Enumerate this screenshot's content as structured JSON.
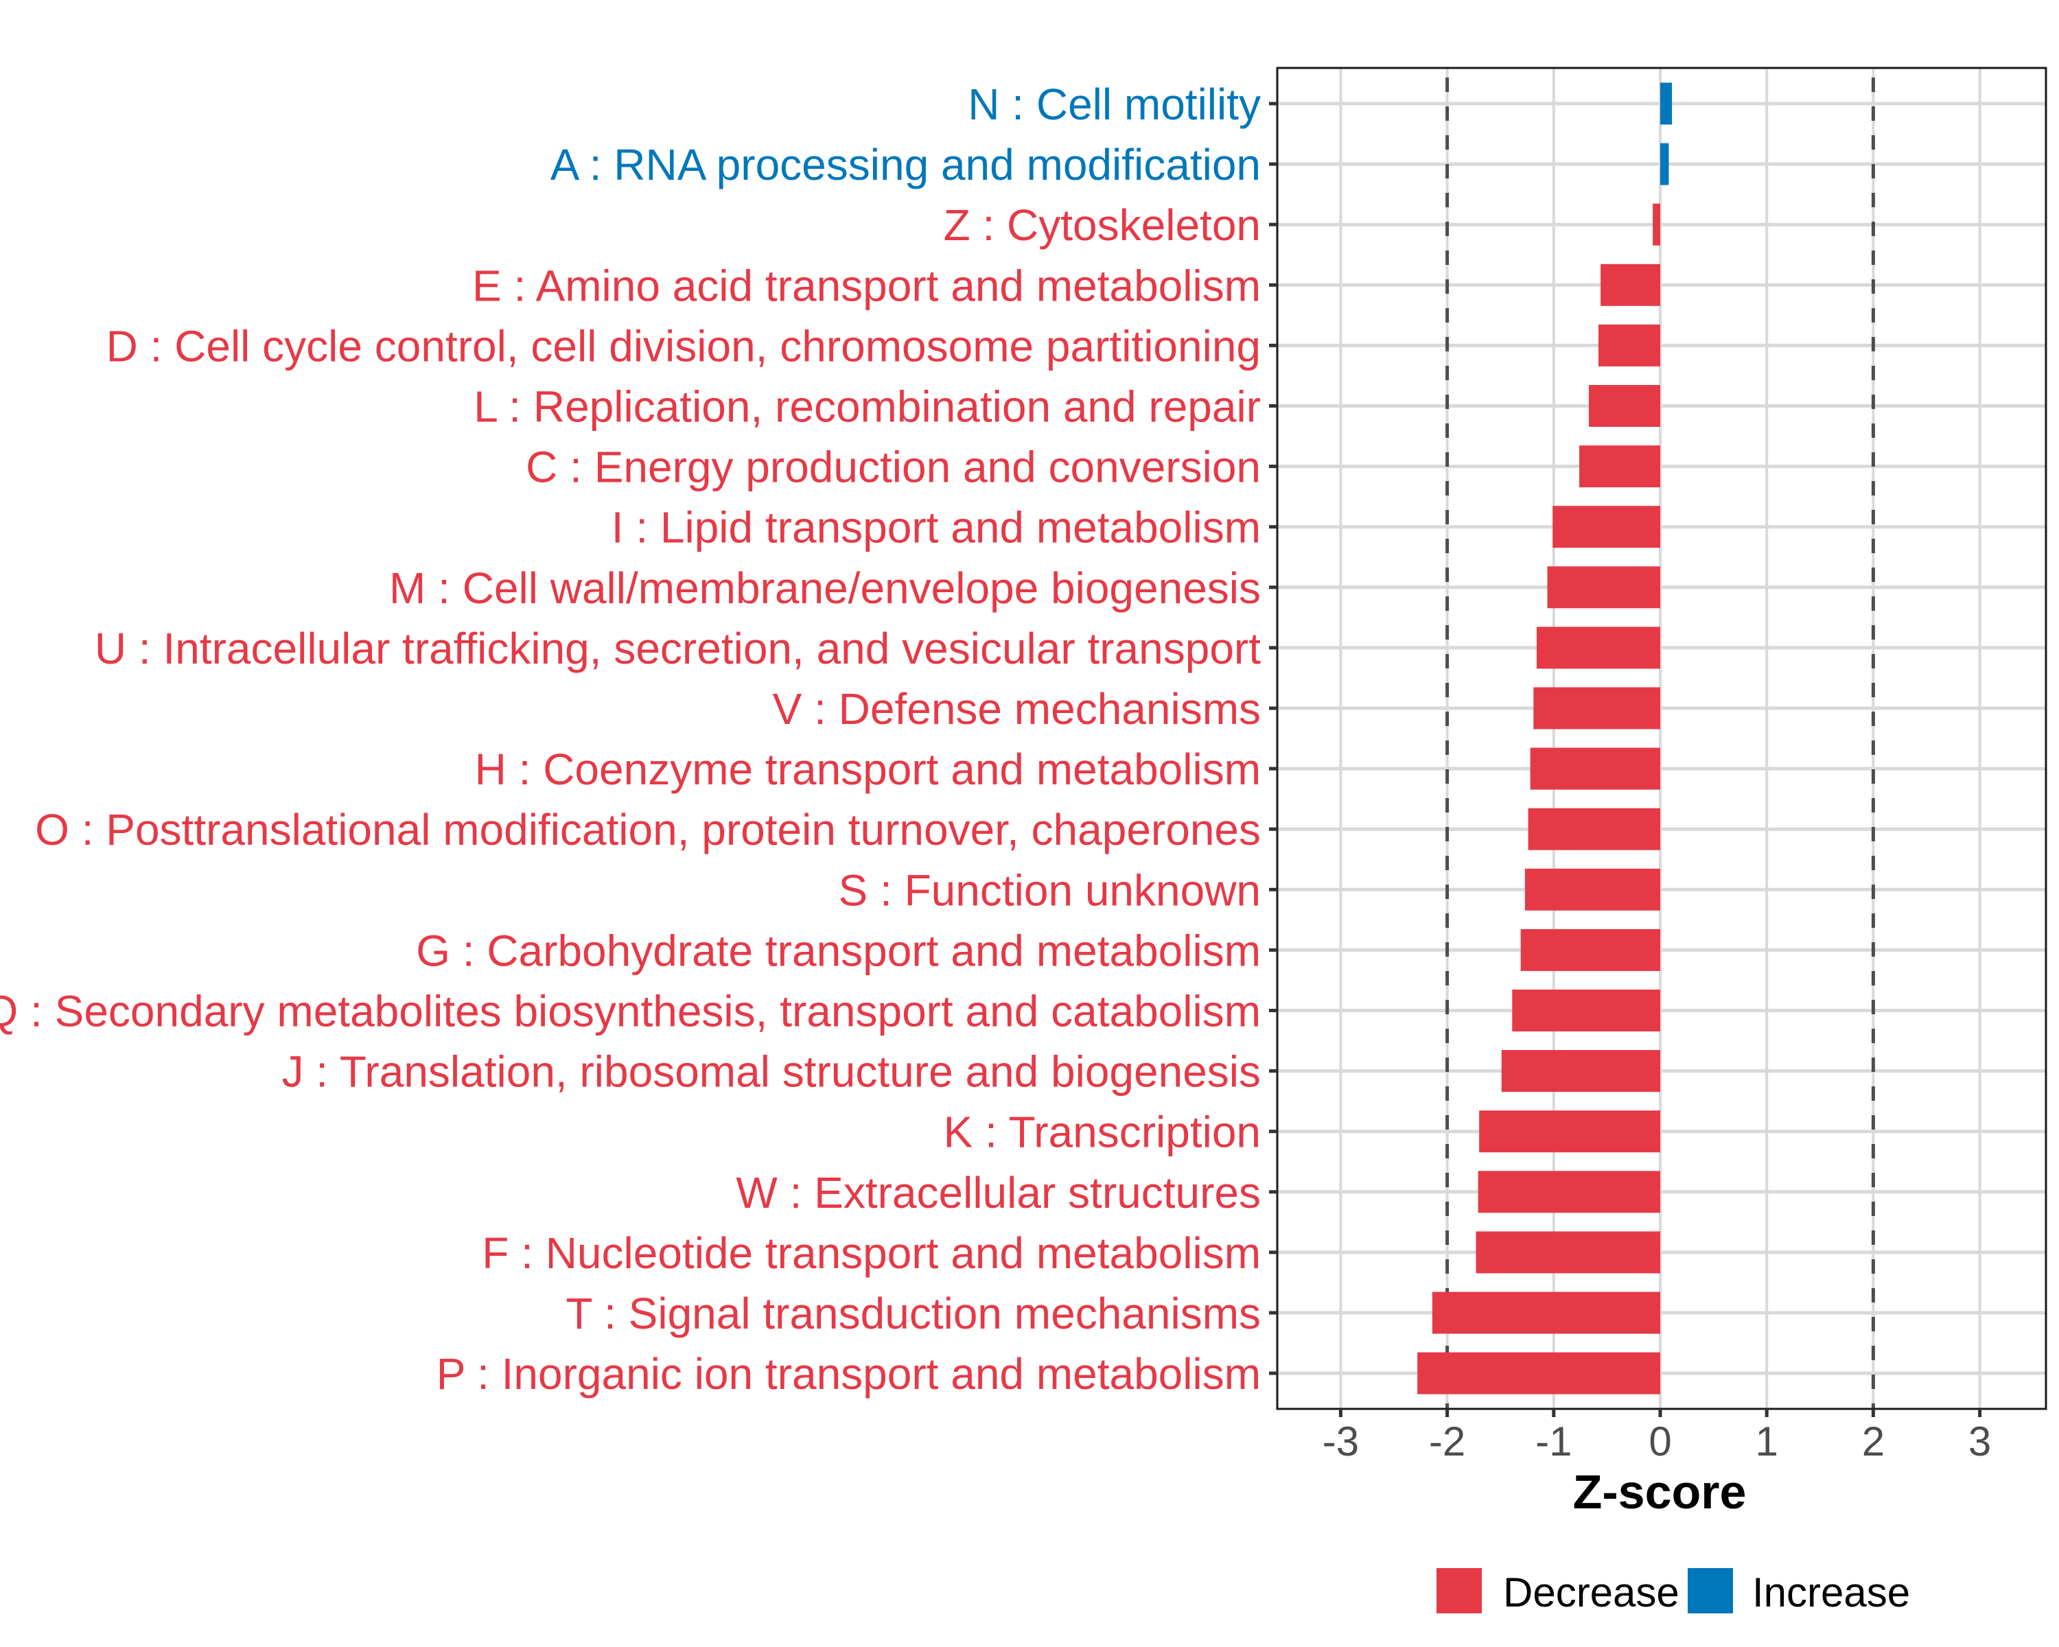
{
  "chart_data": {
    "type": "bar",
    "orientation": "horizontal",
    "title": "",
    "xlabel": "Z-score",
    "ylabel": "",
    "xlim": [
      -3.6,
      3.6
    ],
    "x_ticks": [
      -3,
      -2,
      -1,
      0,
      1,
      2,
      3
    ],
    "x_tick_labels": [
      "-3",
      "-2",
      "-1",
      "0",
      "1",
      "2",
      "3"
    ],
    "reference_lines": [
      -2,
      2
    ],
    "grid": true,
    "legend": {
      "position": "bottom",
      "items": [
        {
          "label": "Decrease",
          "color": "#E63946"
        },
        {
          "label": "Increase",
          "color": "#0077BB"
        }
      ]
    },
    "colors": {
      "Decrease": "#E63946",
      "Increase": "#0077BB"
    },
    "categories": [
      "N : Cell motility",
      "A : RNA processing and modification",
      "Z : Cytoskeleton",
      "E : Amino acid transport and metabolism",
      "D : Cell cycle control, cell division, chromosome partitioning",
      "L : Replication, recombination and repair",
      "C : Energy production and conversion",
      "I : Lipid transport and metabolism",
      "M : Cell wall/membrane/envelope biogenesis",
      "U : Intracellular trafficking, secretion, and vesicular transport",
      "V : Defense mechanisms",
      "H : Coenzyme transport and metabolism",
      "O : Posttranslational modification, protein turnover, chaperones",
      "S : Function unknown",
      "G : Carbohydrate transport and metabolism",
      "Q : Secondary metabolites biosynthesis, transport and catabolism",
      "J : Translation, ribosomal structure and biogenesis",
      "K : Transcription",
      "W : Extracellular structures",
      "F : Nucleotide transport and metabolism",
      "T : Signal transduction mechanisms",
      "P : Inorganic ion transport and metabolism"
    ],
    "values": [
      0.11,
      0.08,
      -0.07,
      -0.56,
      -0.58,
      -0.67,
      -0.76,
      -1.01,
      -1.06,
      -1.16,
      -1.19,
      -1.22,
      -1.24,
      -1.27,
      -1.31,
      -1.39,
      -1.49,
      -1.7,
      -1.71,
      -1.73,
      -2.14,
      -2.28
    ],
    "groups": [
      "Increase",
      "Increase",
      "Decrease",
      "Decrease",
      "Decrease",
      "Decrease",
      "Decrease",
      "Decrease",
      "Decrease",
      "Decrease",
      "Decrease",
      "Decrease",
      "Decrease",
      "Decrease",
      "Decrease",
      "Decrease",
      "Decrease",
      "Decrease",
      "Decrease",
      "Decrease",
      "Decrease",
      "Decrease"
    ]
  }
}
